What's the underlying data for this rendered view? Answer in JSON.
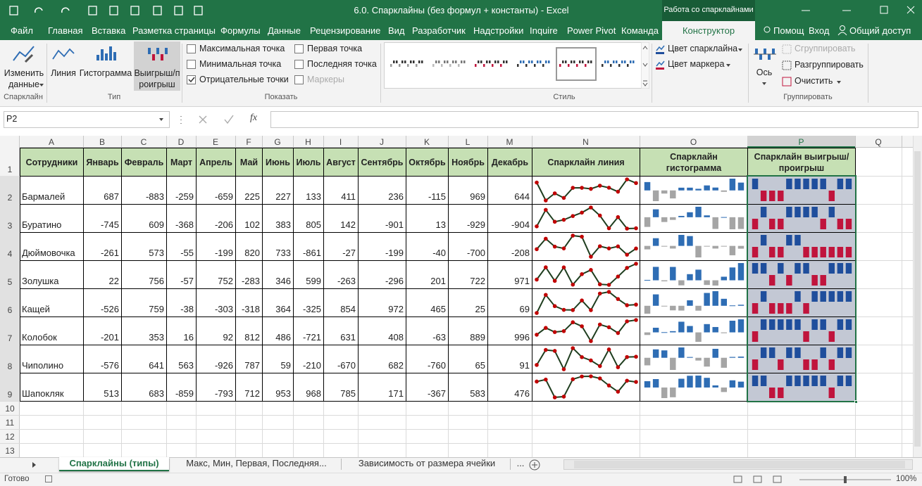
{
  "title_bar": {
    "title": "6.0. Спарклайны (без формул + константы) - Excel",
    "context": "Работа со спарклайнами"
  },
  "tabs": [
    "Файл",
    "Главная",
    "Вставка",
    "Разметка страницы",
    "Формулы",
    "Данные",
    "Рецензирование",
    "Вид",
    "Разработчик",
    "Надстройки",
    "Inquire",
    "Power Pivot",
    "Команда",
    "Конструктор"
  ],
  "active_tab_index": 13,
  "account": [
    "Помощ",
    "Вход",
    "Общий доступ"
  ],
  "ribbon": {
    "sparkline_group": {
      "button": "Изменить данные",
      "label": "Спарклайн"
    },
    "type_group": {
      "buttons": [
        "Линия",
        "Гистограмма",
        "Выигрыш/проигрыш"
      ],
      "active_index": 2,
      "label": "Тип"
    },
    "show_group": {
      "options": [
        {
          "label": "Максимальная точка",
          "checked": false,
          "enabled": true
        },
        {
          "label": "Минимальная точка",
          "checked": false,
          "enabled": true
        },
        {
          "label": "Отрицательные точки",
          "checked": true,
          "enabled": true
        },
        {
          "label": "Первая точка",
          "checked": false,
          "enabled": true
        },
        {
          "label": "Последняя точка",
          "checked": false,
          "enabled": true
        },
        {
          "label": "Маркеры",
          "checked": false,
          "enabled": false
        }
      ],
      "label": "Показать"
    },
    "style_group": {
      "color_buttons": [
        "Цвет спарклайна",
        "Цвет маркера"
      ],
      "label": "Стиль"
    },
    "group_group": {
      "axis": "Ось",
      "buttons": [
        {
          "label": "Сгруппировать",
          "enabled": false
        },
        {
          "label": "Разгруппировать",
          "enabled": true
        },
        {
          "label": "Очистить",
          "enabled": true
        }
      ],
      "label": "Группировать"
    }
  },
  "name_box": "P2",
  "formula_fx": "fx",
  "columns": [
    "A",
    "B",
    "C",
    "D",
    "E",
    "F",
    "G",
    "H",
    "I",
    "J",
    "K",
    "L",
    "M",
    "N",
    "O",
    "P",
    "Q"
  ],
  "row_numbers": [
    1,
    2,
    3,
    4,
    5,
    6,
    7,
    8,
    9,
    10,
    11,
    12,
    13
  ],
  "table": {
    "header": [
      "Сотрудники",
      "Январь",
      "Февраль",
      "Март",
      "Апрель",
      "Май",
      "Июнь",
      "Июль",
      "Август",
      "Сентябрь",
      "Октябрь",
      "Ноябрь",
      "Декабрь",
      "Спарклайн линия",
      "Спарклайн гистограмма",
      "Спарклайн выигрыш/проигрыш"
    ],
    "rows": [
      [
        "Бармалей",
        687,
        -883,
        -259,
        -659,
        225,
        227,
        133,
        411,
        236,
        -115,
        969,
        644
      ],
      [
        "Буратино",
        -745,
        609,
        -368,
        -206,
        102,
        383,
        805,
        142,
        -901,
        13,
        -929,
        -904
      ],
      [
        "Дюймовочка",
        -261,
        573,
        -55,
        -199,
        820,
        733,
        -861,
        -27,
        -199,
        -40,
        -700,
        -208
      ],
      [
        "Золушка",
        22,
        756,
        -57,
        752,
        -283,
        346,
        599,
        -263,
        -296,
        201,
        722,
        971
      ],
      [
        "Кащей",
        -526,
        759,
        -38,
        -303,
        -318,
        364,
        -325,
        854,
        972,
        465,
        25,
        69
      ],
      [
        "Колобок",
        -201,
        353,
        16,
        92,
        812,
        486,
        -721,
        631,
        408,
        -63,
        889,
        996
      ],
      [
        "Чиполино",
        -576,
        641,
        563,
        -926,
        787,
        59,
        -210,
        -670,
        682,
        -760,
        65,
        91
      ],
      [
        "Шапокляк",
        513,
        683,
        -859,
        -793,
        712,
        953,
        968,
        785,
        171,
        -367,
        583,
        476
      ]
    ]
  },
  "sheet_tabs": [
    "Спарклайны (типы)",
    "Макс, Мин, Первая, Последняя...",
    "Зависимость от размера ячейки",
    "..."
  ],
  "active_sheet_index": 0,
  "status": {
    "ready": "Готово",
    "zoom": "100%"
  }
}
